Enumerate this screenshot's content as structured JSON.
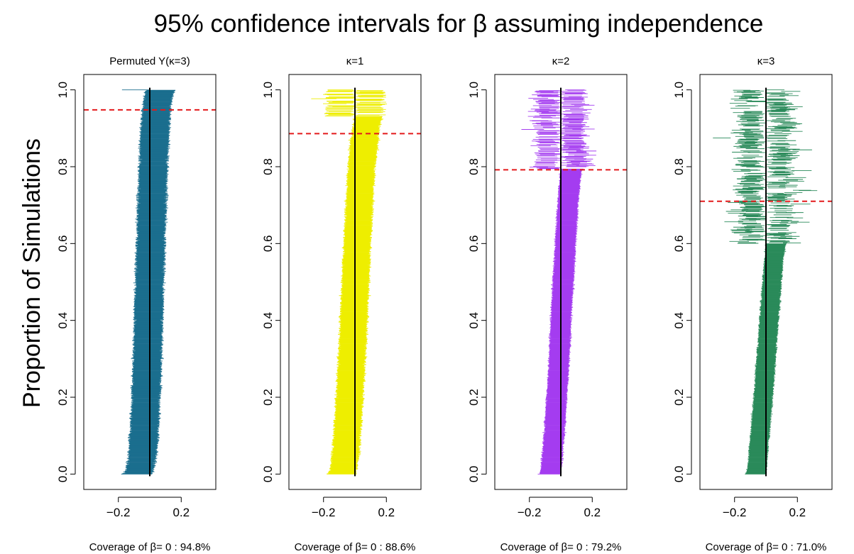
{
  "title": "95% confidence intervals for β assuming independence",
  "ylabel": "Proportion of Simulations",
  "chart_data": [
    {
      "type": "interval",
      "title": "Permuted Y(κ=3)",
      "color": "#1b6e8e",
      "x_tick_labels": [
        "−0.2",
        "0.2"
      ],
      "x_ticks": [
        -0.2,
        0.2
      ],
      "xlim": [
        -0.42,
        0.42
      ],
      "y_tick_labels": [
        "0.0",
        "0.2",
        "0.4",
        "0.6",
        "0.8",
        "1.0"
      ],
      "y_ticks": [
        0.0,
        0.2,
        0.4,
        0.6,
        0.8,
        1.0
      ],
      "ylim": [
        -0.04,
        1.04
      ],
      "reference_line_x": 0,
      "coverage_cutoff_y": 0.948,
      "coverage_label": "Coverage of β= 0 : 94.8%",
      "n_intervals": 1000,
      "half_width_mean": 0.09,
      "center_sd": 0.028,
      "grid": false
    },
    {
      "type": "interval",
      "title": "κ=1",
      "color": "#eeee00",
      "x_tick_labels": [
        "−0.2",
        "0.2"
      ],
      "x_ticks": [
        -0.2,
        0.2
      ],
      "xlim": [
        -0.42,
        0.42
      ],
      "y_tick_labels": [
        "0.0",
        "0.2",
        "0.4",
        "0.6",
        "0.8",
        "1.0"
      ],
      "y_ticks": [
        0.0,
        0.2,
        0.4,
        0.6,
        0.8,
        1.0
      ],
      "ylim": [
        -0.04,
        1.04
      ],
      "reference_line_x": 0,
      "coverage_cutoff_y": 0.886,
      "coverage_label": "Coverage of β= 0 : 88.6%",
      "n_intervals": 1000,
      "half_width_mean": 0.085,
      "center_sd": 0.045,
      "grid": false
    },
    {
      "type": "interval",
      "title": "κ=2",
      "color": "#a43cf0",
      "x_tick_labels": [
        "−0.2",
        "0.2"
      ],
      "x_ticks": [
        -0.2,
        0.2
      ],
      "xlim": [
        -0.42,
        0.42
      ],
      "y_tick_labels": [
        "0.0",
        "0.2",
        "0.4",
        "0.6",
        "0.8",
        "1.0"
      ],
      "y_ticks": [
        0.0,
        0.2,
        0.4,
        0.6,
        0.8,
        1.0
      ],
      "ylim": [
        -0.04,
        1.04
      ],
      "reference_line_x": 0,
      "coverage_cutoff_y": 0.792,
      "coverage_label": "Coverage of β= 0 : 79.2%",
      "n_intervals": 1000,
      "half_width_mean": 0.065,
      "center_sd": 0.055,
      "grid": false
    },
    {
      "type": "interval",
      "title": "κ=3",
      "color": "#2a8a5a",
      "x_tick_labels": [
        "−0.2",
        "0.2"
      ],
      "x_ticks": [
        -0.2,
        0.2
      ],
      "xlim": [
        -0.42,
        0.42
      ],
      "y_tick_labels": [
        "0.0",
        "0.2",
        "0.4",
        "0.6",
        "0.8",
        "1.0"
      ],
      "y_ticks": [
        0.0,
        0.2,
        0.4,
        0.6,
        0.8,
        1.0
      ],
      "ylim": [
        -0.04,
        1.04
      ],
      "reference_line_x": 0,
      "coverage_cutoff_y": 0.71,
      "coverage_label": "Coverage of β= 0 : 71.0%",
      "n_intervals": 1000,
      "half_width_mean": 0.06,
      "center_sd": 0.075,
      "grid": false
    }
  ]
}
